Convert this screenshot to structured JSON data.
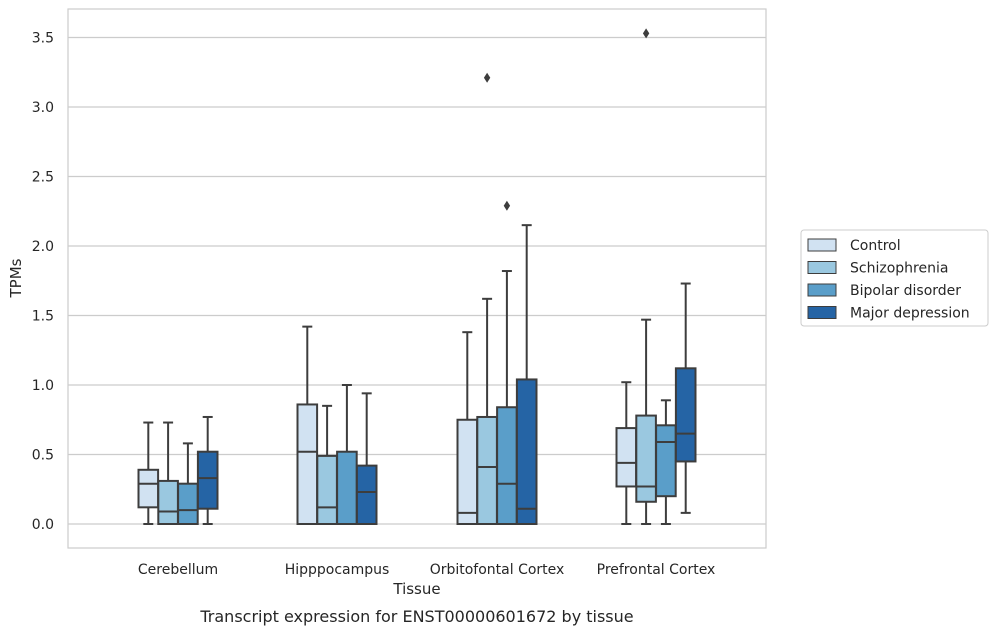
{
  "chart_data": {
    "type": "box",
    "title": "Transcript expression for ENST00000601672 by tissue",
    "xlabel": "Tissue",
    "ylabel": "TPMs",
    "ylim": [
      -0.17,
      3.71
    ],
    "yticks": [
      0.0,
      0.5,
      1.0,
      1.5,
      2.0,
      2.5,
      3.0,
      3.5
    ],
    "ytick_labels": [
      "0.0",
      "0.5",
      "1.0",
      "1.5",
      "2.0",
      "2.5",
      "3.0",
      "3.5"
    ],
    "grid": "horizontal",
    "legend_position": "right",
    "categories": [
      "Cerebellum",
      "Hipppocampus",
      "Orbitofontal Cortex",
      "Prefrontal Cortex"
    ],
    "series": [
      {
        "name": "Control",
        "color": "#d1e2f2",
        "boxes": [
          {
            "whislo": 0.0,
            "q1": 0.12,
            "med": 0.29,
            "q3": 0.39,
            "whishi": 0.73,
            "fliers": []
          },
          {
            "whislo": 0.0,
            "q1": 0.0,
            "med": 0.52,
            "q3": 0.86,
            "whishi": 1.42,
            "fliers": []
          },
          {
            "whislo": 0.0,
            "q1": 0.0,
            "med": 0.08,
            "q3": 0.75,
            "whishi": 1.38,
            "fliers": []
          },
          {
            "whislo": 0.0,
            "q1": 0.27,
            "med": 0.44,
            "q3": 0.69,
            "whishi": 1.02,
            "fliers": []
          }
        ]
      },
      {
        "name": "Schizophrenia",
        "color": "#9ac8e0",
        "boxes": [
          {
            "whislo": 0.0,
            "q1": 0.0,
            "med": 0.09,
            "q3": 0.31,
            "whishi": 0.73,
            "fliers": []
          },
          {
            "whislo": 0.0,
            "q1": 0.0,
            "med": 0.12,
            "q3": 0.49,
            "whishi": 0.85,
            "fliers": []
          },
          {
            "whislo": 0.0,
            "q1": 0.0,
            "med": 0.41,
            "q3": 0.77,
            "whishi": 1.62,
            "fliers": [
              3.21
            ]
          },
          {
            "whislo": 0.0,
            "q1": 0.16,
            "med": 0.27,
            "q3": 0.78,
            "whishi": 1.47,
            "fliers": [
              3.53
            ]
          }
        ]
      },
      {
        "name": "Bipolar disorder",
        "color": "#5a9ec9",
        "boxes": [
          {
            "whislo": 0.0,
            "q1": 0.0,
            "med": 0.1,
            "q3": 0.29,
            "whishi": 0.58,
            "fliers": []
          },
          {
            "whislo": 0.0,
            "q1": 0.0,
            "med": 0.0,
            "q3": 0.52,
            "whishi": 1.0,
            "fliers": []
          },
          {
            "whislo": 0.0,
            "q1": 0.0,
            "med": 0.29,
            "q3": 0.84,
            "whishi": 1.82,
            "fliers": [
              2.29
            ]
          },
          {
            "whislo": 0.0,
            "q1": 0.2,
            "med": 0.59,
            "q3": 0.71,
            "whishi": 0.89,
            "fliers": []
          }
        ]
      },
      {
        "name": "Major depression",
        "color": "#2564a5",
        "boxes": [
          {
            "whislo": 0.0,
            "q1": 0.11,
            "med": 0.33,
            "q3": 0.52,
            "whishi": 0.77,
            "fliers": []
          },
          {
            "whislo": 0.0,
            "q1": 0.0,
            "med": 0.23,
            "q3": 0.42,
            "whishi": 0.94,
            "fliers": []
          },
          {
            "whislo": 0.0,
            "q1": 0.0,
            "med": 0.11,
            "q3": 1.04,
            "whishi": 2.15,
            "fliers": []
          },
          {
            "whislo": 0.08,
            "q1": 0.45,
            "med": 0.65,
            "q3": 1.12,
            "whishi": 1.73,
            "fliers": []
          }
        ]
      }
    ]
  },
  "colors": {
    "grid": "#cccccc",
    "frame": "#cccccc",
    "box_edge": "#3d3d3d",
    "text": "#262626"
  }
}
